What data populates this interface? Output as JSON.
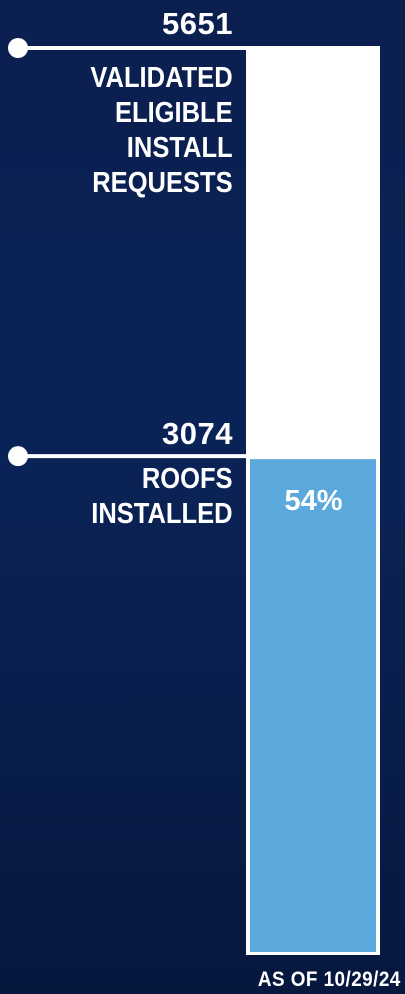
{
  "chart_data": {
    "type": "bar",
    "stacked_progress": true,
    "total": {
      "value": 5651,
      "value_label": "5651",
      "label": "VALIDATED ELIGIBLE INSTALL REQUESTS",
      "label_lines": [
        "VALIDATED",
        "ELIGIBLE",
        "INSTALL",
        "REQUESTS"
      ],
      "color": "#ffffff"
    },
    "completed": {
      "value": 3074,
      "value_label": "3074",
      "label": "ROOFS INSTALLED",
      "label_lines": [
        "ROOFS",
        "INSTALLED"
      ],
      "color": "#5aa8dc"
    },
    "percent_label": "54%",
    "footnote": "AS OF 10/29/24"
  }
}
